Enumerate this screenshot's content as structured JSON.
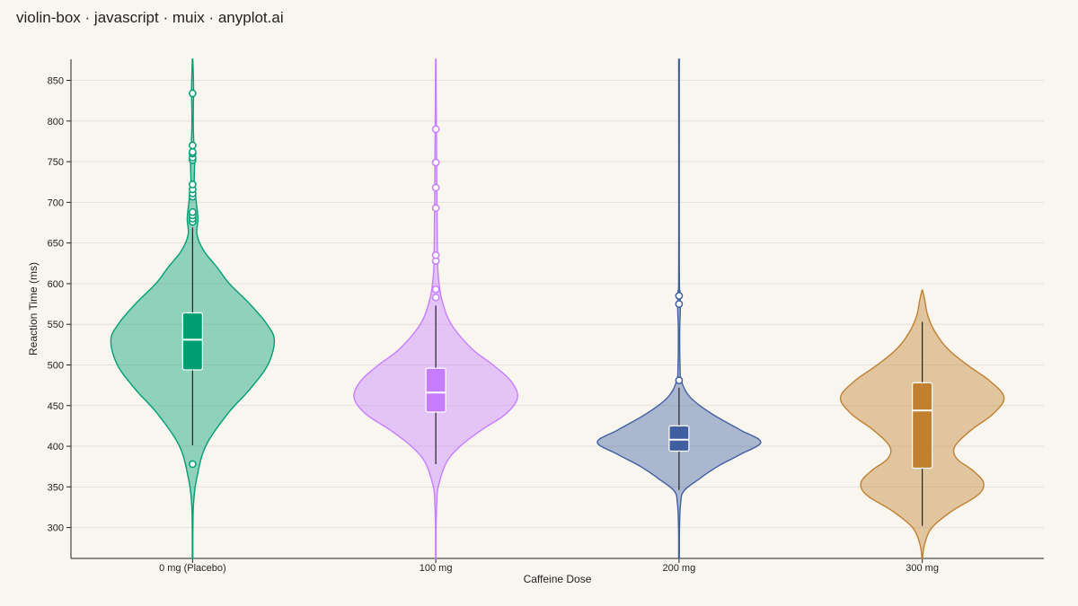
{
  "page_title": "violin-box · javascript · muix · anyplot.ai",
  "chart_data": {
    "type": "violin",
    "xlabel": "Caffeine Dose",
    "ylabel": "Reaction Time (ms)",
    "ylim": [
      262,
      876
    ],
    "yticks": [
      300,
      350,
      400,
      450,
      500,
      550,
      600,
      650,
      700,
      750,
      800,
      850
    ],
    "grid": true,
    "categories": [
      "0 mg (Placebo)",
      "100 mg",
      "200 mg",
      "300 mg"
    ],
    "groups": [
      {
        "label": "0 mg (Placebo)",
        "color": "#009e73",
        "range": [
          262,
          876
        ],
        "box": {
          "q1": 494,
          "median": 531,
          "q3": 564,
          "whisker_low": 401,
          "whisker_high": 669
        },
        "outliers": [
          378,
          676,
          680,
          684,
          688,
          707,
          711,
          716,
          722,
          752,
          755,
          760,
          762,
          770,
          834
        ],
        "density": [
          [
            262,
            0.003
          ],
          [
            300,
            0.004
          ],
          [
            330,
            0.012
          ],
          [
            360,
            0.05
          ],
          [
            400,
            0.16
          ],
          [
            440,
            0.43
          ],
          [
            470,
            0.7
          ],
          [
            500,
            0.92
          ],
          [
            530,
            1.0
          ],
          [
            550,
            0.91
          ],
          [
            575,
            0.7
          ],
          [
            600,
            0.45
          ],
          [
            620,
            0.3
          ],
          [
            640,
            0.14
          ],
          [
            660,
            0.055
          ],
          [
            680,
            0.065
          ],
          [
            700,
            0.045
          ],
          [
            720,
            0.02
          ],
          [
            750,
            0.025
          ],
          [
            770,
            0.016
          ],
          [
            800,
            0.008
          ],
          [
            840,
            0.012
          ],
          [
            876,
            0.003
          ]
        ]
      },
      {
        "label": "100 mg",
        "color": "#c77dff",
        "range": [
          262,
          876
        ],
        "box": {
          "q1": 442,
          "median": 466,
          "q3": 496,
          "whisker_low": 378,
          "whisker_high": 573
        },
        "outliers": [
          583,
          593,
          628,
          635,
          693,
          718,
          749,
          790
        ],
        "density": [
          [
            262,
            0.003
          ],
          [
            300,
            0.004
          ],
          [
            330,
            0.012
          ],
          [
            350,
            0.03
          ],
          [
            380,
            0.13
          ],
          [
            400,
            0.3
          ],
          [
            420,
            0.56
          ],
          [
            440,
            0.86
          ],
          [
            460,
            1.0
          ],
          [
            480,
            0.92
          ],
          [
            500,
            0.7
          ],
          [
            520,
            0.44
          ],
          [
            550,
            0.19
          ],
          [
            580,
            0.075
          ],
          [
            610,
            0.03
          ],
          [
            640,
            0.02
          ],
          [
            680,
            0.016
          ],
          [
            720,
            0.012
          ],
          [
            760,
            0.01
          ],
          [
            800,
            0.007
          ],
          [
            876,
            0.003
          ]
        ]
      },
      {
        "label": "200 mg",
        "color": "#3f5fa0",
        "range": [
          262,
          876
        ],
        "box": {
          "q1": 394,
          "median": 408,
          "q3": 425,
          "whisker_low": 346,
          "whisker_high": 472
        },
        "outliers": [
          481,
          575,
          585
        ],
        "density": [
          [
            262,
            0.004
          ],
          [
            300,
            0.006
          ],
          [
            330,
            0.02
          ],
          [
            345,
            0.06
          ],
          [
            360,
            0.25
          ],
          [
            375,
            0.47
          ],
          [
            390,
            0.75
          ],
          [
            405,
            1.0
          ],
          [
            420,
            0.75
          ],
          [
            440,
            0.4
          ],
          [
            460,
            0.14
          ],
          [
            480,
            0.03
          ],
          [
            500,
            0.012
          ],
          [
            540,
            0.008
          ],
          [
            570,
            0.016
          ],
          [
            590,
            0.012
          ],
          [
            620,
            0.004
          ],
          [
            876,
            0.004
          ]
        ]
      },
      {
        "label": "300 mg",
        "color": "#c08030",
        "range": [
          262,
          592
        ],
        "box": {
          "q1": 373,
          "median": 444,
          "q3": 478,
          "whisker_low": 302,
          "whisker_high": 553
        },
        "outliers": [],
        "density": [
          [
            262,
            0.003
          ],
          [
            280,
            0.03
          ],
          [
            300,
            0.12
          ],
          [
            320,
            0.36
          ],
          [
            340,
            0.68
          ],
          [
            355,
            0.75
          ],
          [
            370,
            0.62
          ],
          [
            385,
            0.42
          ],
          [
            400,
            0.4
          ],
          [
            420,
            0.6
          ],
          [
            440,
            0.87
          ],
          [
            460,
            1.0
          ],
          [
            480,
            0.83
          ],
          [
            500,
            0.55
          ],
          [
            520,
            0.31
          ],
          [
            540,
            0.16
          ],
          [
            560,
            0.07
          ],
          [
            580,
            0.03
          ],
          [
            592,
            0.003
          ]
        ]
      }
    ]
  }
}
